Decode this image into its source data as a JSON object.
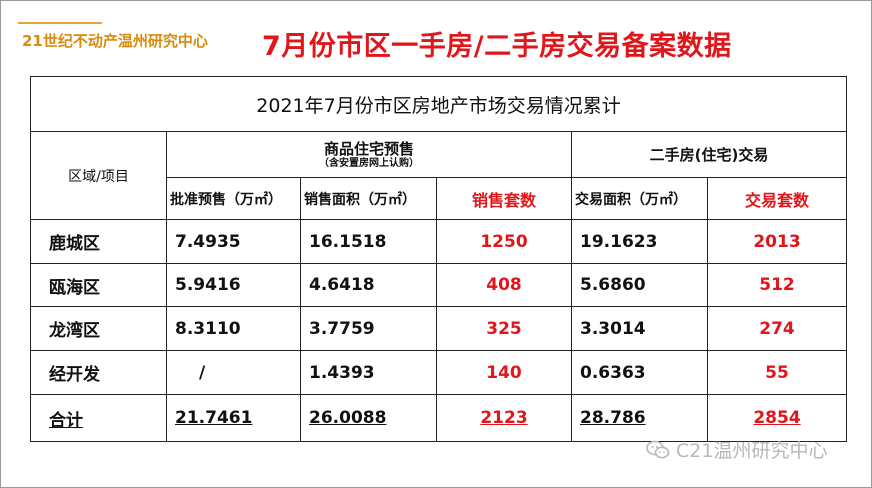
{
  "header": {
    "org_name": "21世纪不动产温州研究中心",
    "title": "7月份市区一手房/二手房交易备案数据"
  },
  "table": {
    "caption": "2021年7月份市区房地产市场交易情况累计",
    "row_header_label": "区域/项目",
    "group_new": {
      "title": "商品住宅预售",
      "note": "（含安置房网上认购）"
    },
    "group_second": {
      "title": "二手房(住宅)交易"
    },
    "columns": [
      "批准预售（万㎡）",
      "销售面积（万㎡）",
      "销售套数",
      "交易面积（万㎡）",
      "交易套数"
    ],
    "rows": [
      {
        "area": "鹿城区",
        "values": [
          "7.4935",
          "16.1518",
          "1250",
          "19.1623",
          "2013"
        ]
      },
      {
        "area": "瓯海区",
        "values": [
          "5.9416",
          "4.6418",
          "408",
          "5.6860",
          "512"
        ]
      },
      {
        "area": "龙湾区",
        "values": [
          "8.3110",
          "3.7759",
          "325",
          "3.3014",
          "274"
        ]
      },
      {
        "area": "经开发",
        "values": [
          "/",
          "1.4393",
          "140",
          "0.6363",
          "55"
        ]
      }
    ],
    "total": {
      "area": "合计",
      "values": [
        "21.7461",
        "26.0088",
        "2123",
        "28.786",
        "2854"
      ]
    }
  },
  "watermark": {
    "text": "C21温州研究中心",
    "icon": "wechat-icon"
  },
  "colors": {
    "accent_red": "#e0161b",
    "org_orange": "#d98b0a",
    "border": "#222222"
  }
}
